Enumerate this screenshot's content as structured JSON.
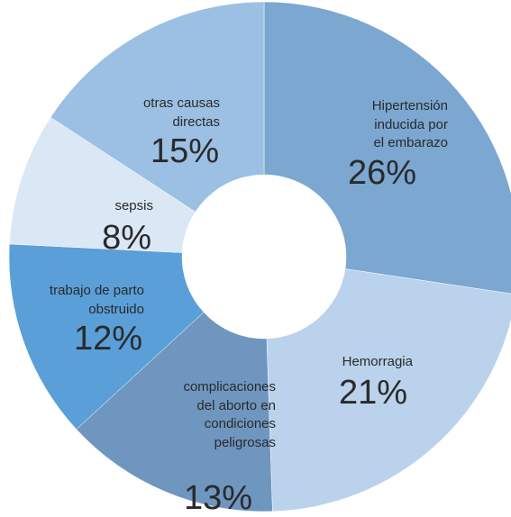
{
  "chart_data": {
    "type": "donut",
    "categories": [
      "Hipertensión\ninducida por\nel embarazo",
      "Hemorragia",
      "complicaciones\ndel aborto en\ncondiciones\npeligrosas",
      "trabajo de parto\nobstruido",
      "sepsis",
      "otras causas\ndirectas"
    ],
    "values": [
      26,
      21,
      13,
      12,
      8,
      15
    ],
    "value_labels": [
      "26%",
      "21%",
      "13%",
      "12%",
      "8%",
      "15%"
    ],
    "colors": [
      "#7ba7d0",
      "#bad2ec",
      "#6f96bf",
      "#5a9fd8",
      "#dae7f5",
      "#9cc0e4"
    ]
  }
}
